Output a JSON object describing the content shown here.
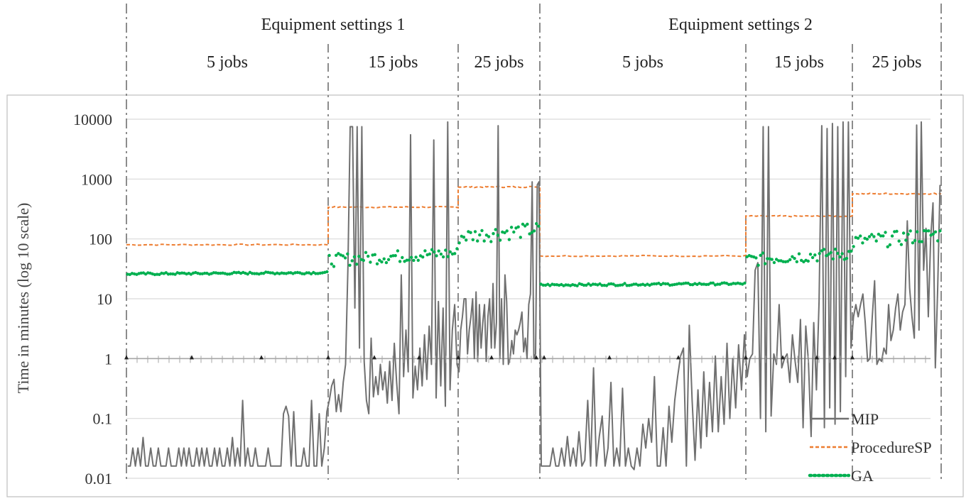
{
  "chart_data": {
    "type": "line",
    "title": "",
    "xlabel": "",
    "ylabel": "Time in minutes (log 10 scale)",
    "yscale": "log10",
    "ylim": [
      0.01,
      10000
    ],
    "y_ticks": [
      "0.01",
      "0.1",
      "1",
      "10",
      "100",
      "1000",
      "10000"
    ],
    "grid": "horizontal",
    "legend_position": "bottom-right",
    "groups": [
      {
        "label": "Equipment settings 1",
        "segments": [
          "5 jobs",
          "15 jobs",
          "25 jobs"
        ]
      },
      {
        "label": "Equipment settings 2",
        "segments": [
          "5 jobs",
          "15 jobs",
          "25 jobs"
        ]
      }
    ],
    "colors": {
      "MIP": "#707070",
      "ProcedureSP": "#ed7d31",
      "GA": "#00b050",
      "grid": "#d9d9d9",
      "divider": "#808080"
    },
    "series": [
      {
        "name": "MIP",
        "values": [
          0.016,
          0.016,
          0.032,
          0.016,
          0.032,
          0.016,
          0.048,
          0.016,
          0.016,
          0.032,
          0.016,
          0.016,
          0.032,
          0.016,
          0.016,
          0.016,
          0.032,
          0.016,
          0.016,
          0.016,
          0.032,
          0.016,
          0.032,
          0.016,
          0.032,
          0.016,
          0.016,
          0.032,
          0.016,
          0.032,
          0.016,
          0.032,
          0.016,
          0.016,
          0.032,
          0.016,
          0.032,
          0.016,
          0.016,
          0.032,
          0.016,
          0.048,
          0.016,
          0.032,
          0.016,
          0.2,
          0.016,
          0.032,
          0.016,
          0.016,
          0.032,
          0.016,
          0.016,
          0.016,
          0.016,
          0.032,
          0.016,
          0.016,
          0.016,
          0.016,
          0.016,
          0.12,
          0.16,
          0.11,
          0.016,
          0.13,
          0.016,
          0.016,
          0.016,
          0.032,
          0.016,
          0.016,
          0.2,
          0.016,
          0.016,
          0.12,
          0.016,
          0.032,
          0.13,
          0.2,
          0.35,
          0.45,
          0.13,
          0.25,
          0.13,
          0.4,
          0.8,
          33,
          7500,
          7500,
          7,
          7500,
          1.5,
          7500,
          0.9,
          0.2,
          0.12,
          2.2,
          0.23,
          0.5,
          0.25,
          0.8,
          0.3,
          0.6,
          0.18,
          0.9,
          0.2,
          1.8,
          0.4,
          0.12,
          25,
          0.5,
          3,
          0.6,
          5500,
          0.22,
          0.75,
          0.3,
          1.5,
          0.35,
          2.5,
          0.45,
          3.5,
          0.8,
          4500,
          0.22,
          9,
          0.35,
          7,
          0.16,
          9000,
          0.3,
          3,
          8,
          0.8,
          0.6,
          3,
          5,
          10,
          10,
          1.2,
          3,
          5,
          10,
          1,
          13,
          0.9,
          8,
          1.5,
          4,
          8,
          0.9,
          5,
          10,
          1.5,
          18,
          1.5,
          4,
          7800,
          1,
          10,
          0.8,
          25,
          9,
          0.8,
          1,
          2,
          1.2,
          3,
          2.5,
          3,
          4,
          6,
          1.3,
          2.2,
          1,
          8,
          12,
          900,
          1,
          1.2,
          800,
          900,
          0.016,
          0.016,
          0.016,
          0.016,
          0.032,
          0.016,
          0.016,
          0.032,
          0.016,
          0.05,
          0.016,
          0.032,
          0.016,
          0.06,
          0.016,
          0.02,
          0.2,
          0.016,
          0.7,
          0.016,
          0.05,
          0.11,
          0.016,
          0.032,
          0.4,
          0.016,
          0.032,
          0.016,
          0.32,
          0.016,
          0.032,
          0.016,
          0.014,
          0.032,
          0.016,
          0.08,
          0.032,
          0.1,
          0.04,
          0.5,
          0.016,
          0.016,
          0.07,
          0.016,
          0.16,
          0.04,
          0.2,
          0.5,
          1.1,
          1.5,
          0.016,
          3.6,
          0.2,
          0.02,
          0.3,
          0.032,
          0.6,
          0.05,
          0.4,
          0.06,
          1.1,
          0.06,
          0.5,
          0.08,
          1.8,
          0.1,
          1,
          0.15,
          1.7,
          0.3,
          2.5,
          0.5,
          1,
          1.2,
          30,
          40,
          0.1,
          7500,
          0.06,
          7500,
          0.11,
          1.2,
          0.8,
          8,
          0.7,
          1,
          1.2,
          0.4,
          2.5,
          0.9,
          0.4,
          4.5,
          0.07,
          3.5,
          0.9,
          0.05,
          4,
          0.3,
          9,
          7800,
          0.07,
          7000,
          0.15,
          8500,
          0.08,
          7500,
          0.13,
          9000,
          0.5,
          9000,
          1.5,
          5,
          8,
          5,
          8,
          12,
          4,
          0.9,
          1,
          5,
          20,
          0.8,
          1,
          0.9,
          1.5,
          1.2,
          8,
          2,
          3,
          7,
          12,
          3,
          6,
          8,
          200,
          15,
          5,
          2.2,
          8000,
          3,
          9000,
          30,
          150,
          5,
          100,
          400,
          0.7,
          15,
          800
        ]
      },
      {
        "name": "ProcedureSP",
        "values": [
          80,
          340,
          740,
          52,
          240,
          570
        ]
      },
      {
        "name": "GA",
        "values": [
          26,
          45,
          110,
          17,
          45,
          90
        ]
      }
    ]
  },
  "legend": [
    {
      "name": "MIP",
      "label": "MIP"
    },
    {
      "name": "ProcedureSP",
      "label": "ProcedureSP"
    },
    {
      "name": "GA",
      "label": "GA"
    }
  ]
}
